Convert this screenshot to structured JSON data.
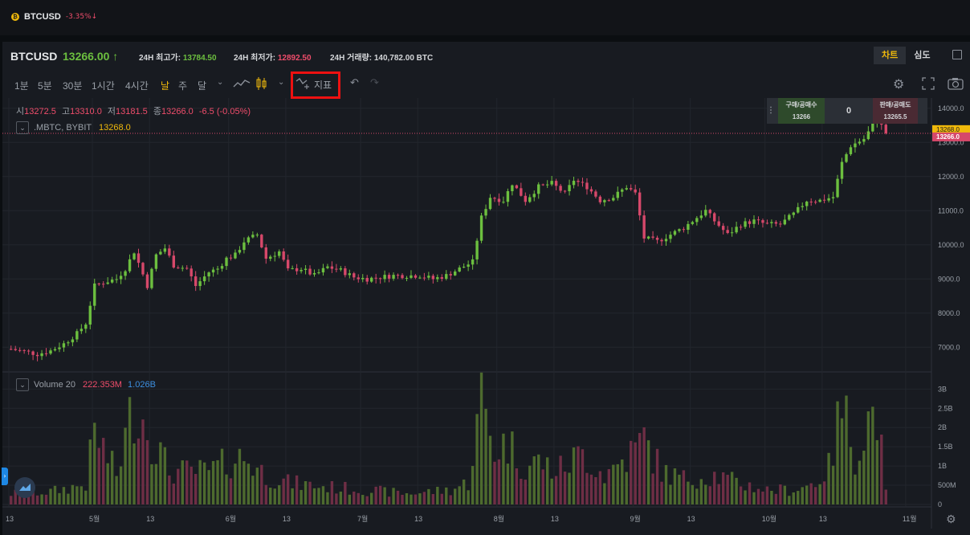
{
  "topbar": {
    "symbol": "BTCUSD",
    "change": "-3.35%↓"
  },
  "header": {
    "symbol": "BTCUSD",
    "price": "13266.00 ↑",
    "high_label": "24H 최고가:",
    "high_value": "13784.50",
    "low_label": "24H 최저가:",
    "low_value": "12892.50",
    "vol_label": "24H 거래량:",
    "vol_value": "140,782.00 BTC",
    "view_tabs": [
      "차트",
      "심도"
    ]
  },
  "toolbar": {
    "timeframes": [
      "1분",
      "5분",
      "30분",
      "1시간",
      "4시간",
      "날",
      "주",
      "달"
    ],
    "active_timeframe": "날",
    "indicator_label": "지표"
  },
  "ohlc": {
    "o_label": "시",
    "o": "13272.5",
    "h_label": "고",
    "h": "13310.0",
    "l_label": "저",
    "l": "13181.5",
    "c_label": "종",
    "c": "13266.0",
    "chg": "-6.5 (-0.05%)"
  },
  "series_legend": {
    "name": ".MBTC, BYBIT",
    "value": "13268.0"
  },
  "volume_legend": {
    "name": "Volume 20",
    "v1": "222.353M",
    "v2": "1.026B"
  },
  "orderbook": {
    "buy_label": "구매/공매수",
    "buy_value": "13266",
    "mid_value": "0",
    "sell_label": "판매/공매도",
    "sell_value": "13265.5"
  },
  "colors": {
    "up": "#6cbf3f",
    "down": "#d6486a",
    "accent": "#f0b90b"
  },
  "chart_data": {
    "type": "candlestick",
    "price_ticks": [
      "14000.0",
      "13000.0",
      "12000.0",
      "11000.0",
      "10000.0",
      "9000.0",
      "8000.0",
      "7000.0"
    ],
    "price_tick_values": [
      14000,
      13000,
      12000,
      11000,
      10000,
      9000,
      8000,
      7000
    ],
    "price_ylim": [
      6300,
      14300
    ],
    "current_price_labels": [
      "13268.0",
      "13266.0"
    ],
    "volume_ticks": [
      "3B",
      "2.5B",
      "2B",
      "1.5B",
      "1B",
      "500M",
      "0"
    ],
    "volume_tick_values": [
      3,
      2.5,
      2,
      1.5,
      1,
      0.5,
      0
    ],
    "volume_ylim": [
      0,
      3.3
    ],
    "x_ticks": [
      "13",
      "5월",
      "13",
      "6월",
      "13",
      "7월",
      "13",
      "8월",
      "13",
      "9월",
      "13",
      "10월",
      "13",
      "11월"
    ],
    "x_tick_days": [
      0,
      19,
      32,
      50,
      63,
      80,
      93,
      111,
      124,
      142,
      155,
      172,
      185,
      204
    ],
    "close_anchors": [
      [
        0,
        6950
      ],
      [
        6,
        6800
      ],
      [
        9,
        6900
      ],
      [
        12,
        7100
      ],
      [
        15,
        7400
      ],
      [
        17,
        7700
      ],
      [
        19,
        8800
      ],
      [
        21,
        8900
      ],
      [
        24,
        9000
      ],
      [
        26,
        9300
      ],
      [
        28,
        9800
      ],
      [
        31,
        8800
      ],
      [
        33,
        9700
      ],
      [
        35,
        9900
      ],
      [
        37,
        9400
      ],
      [
        40,
        9300
      ],
      [
        42,
        8800
      ],
      [
        45,
        9200
      ],
      [
        47,
        9300
      ],
      [
        49,
        9600
      ],
      [
        51,
        9700
      ],
      [
        53,
        10100
      ],
      [
        56,
        10300
      ],
      [
        58,
        9600
      ],
      [
        61,
        9800
      ],
      [
        63,
        9250
      ],
      [
        66,
        9300
      ],
      [
        69,
        9100
      ],
      [
        72,
        9350
      ],
      [
        75,
        9250
      ],
      [
        78,
        9050
      ],
      [
        81,
        9000
      ],
      [
        84,
        9050
      ],
      [
        87,
        9100
      ],
      [
        90,
        9100
      ],
      [
        93,
        9100
      ],
      [
        96,
        9000
      ],
      [
        99,
        9100
      ],
      [
        102,
        9300
      ],
      [
        105,
        9500
      ],
      [
        107,
        10800
      ],
      [
        109,
        11400
      ],
      [
        112,
        11300
      ],
      [
        114,
        11800
      ],
      [
        117,
        11300
      ],
      [
        120,
        11700
      ],
      [
        123,
        11800
      ],
      [
        126,
        11500
      ],
      [
        128,
        11900
      ],
      [
        131,
        11700
      ],
      [
        134,
        11300
      ],
      [
        137,
        11400
      ],
      [
        140,
        11700
      ],
      [
        142,
        11500
      ],
      [
        144,
        10200
      ],
      [
        147,
        10100
      ],
      [
        150,
        10300
      ],
      [
        153,
        10500
      ],
      [
        156,
        10800
      ],
      [
        158,
        11000
      ],
      [
        160,
        10700
      ],
      [
        163,
        10300
      ],
      [
        166,
        10600
      ],
      [
        169,
        10700
      ],
      [
        172,
        10600
      ],
      [
        175,
        10600
      ],
      [
        178,
        10900
      ],
      [
        181,
        11300
      ],
      [
        184,
        11300
      ],
      [
        187,
        11400
      ],
      [
        189,
        12400
      ],
      [
        191,
        12900
      ],
      [
        194,
        13100
      ],
      [
        197,
        13700
      ],
      [
        199,
        13266
      ]
    ],
    "volume_anchors": [
      [
        0,
        0.3
      ],
      [
        9,
        0.35
      ],
      [
        17,
        0.55
      ],
      [
        19,
        2.0
      ],
      [
        24,
        0.8
      ],
      [
        28,
        2.8
      ],
      [
        32,
        1.9
      ],
      [
        36,
        0.9
      ],
      [
        45,
        0.9
      ],
      [
        50,
        1.2
      ],
      [
        53,
        1.3
      ],
      [
        58,
        0.8
      ],
      [
        63,
        0.6
      ],
      [
        70,
        0.5
      ],
      [
        80,
        0.4
      ],
      [
        90,
        0.3
      ],
      [
        100,
        0.4
      ],
      [
        104,
        0.6
      ],
      [
        107,
        2.9
      ],
      [
        110,
        1.5
      ],
      [
        113,
        1.7
      ],
      [
        117,
        1.0
      ],
      [
        120,
        1.2
      ],
      [
        124,
        0.9
      ],
      [
        130,
        1.4
      ],
      [
        135,
        0.8
      ],
      [
        142,
        1.5
      ],
      [
        144,
        1.8
      ],
      [
        148,
        0.9
      ],
      [
        153,
        0.7
      ],
      [
        160,
        0.8
      ],
      [
        165,
        0.6
      ],
      [
        172,
        0.4
      ],
      [
        178,
        0.4
      ],
      [
        183,
        0.6
      ],
      [
        186,
        1.0
      ],
      [
        189,
        2.7
      ],
      [
        192,
        1.4
      ],
      [
        195,
        2.3
      ],
      [
        197,
        2.6
      ],
      [
        199,
        0.3
      ]
    ]
  }
}
